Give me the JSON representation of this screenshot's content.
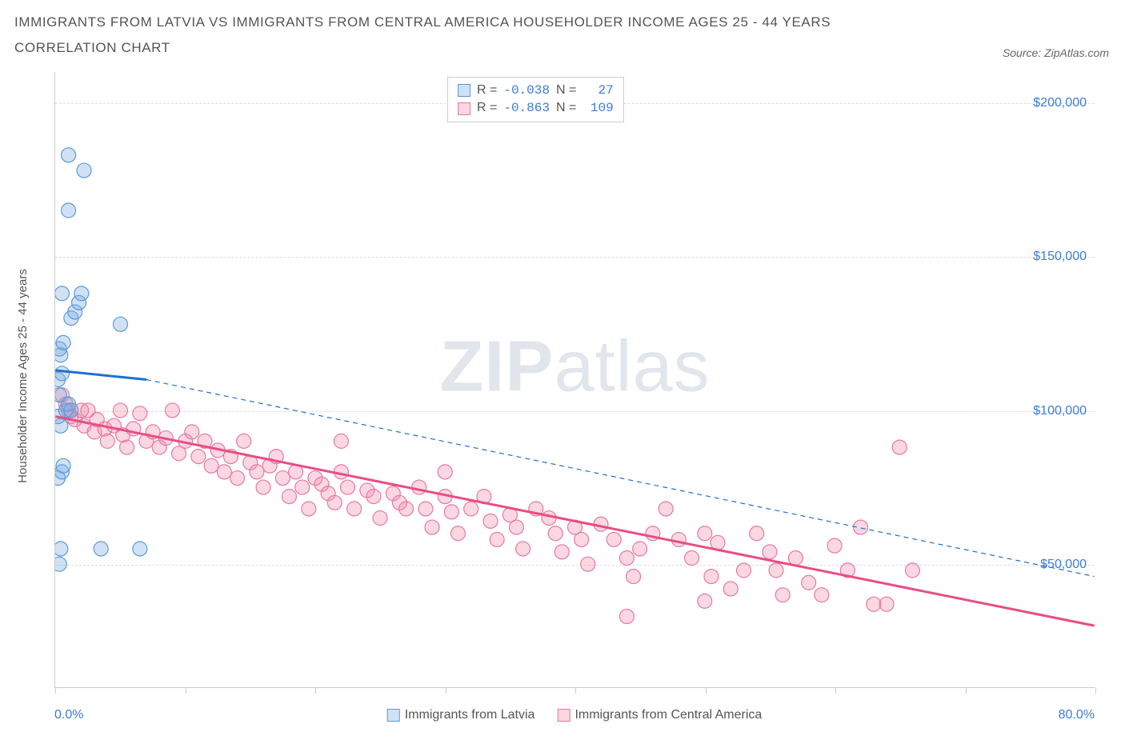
{
  "title_line1": "IMMIGRANTS FROM LATVIA VS IMMIGRANTS FROM CENTRAL AMERICA HOUSEHOLDER INCOME AGES 25 - 44 YEARS",
  "title_line2": "CORRELATION CHART",
  "source_label": "Source: ZipAtlas.com",
  "watermark_bold": "ZIP",
  "watermark_light": "atlas",
  "y_axis_label": "Householder Income Ages 25 - 44 years",
  "x_axis": {
    "min": 0,
    "max": 80,
    "left_label": "0.0%",
    "right_label": "80.0%",
    "tick_positions": [
      0,
      10,
      20,
      30,
      40,
      50,
      60,
      70,
      80
    ]
  },
  "y_axis": {
    "min": 10000,
    "max": 210000,
    "gridlines": [
      {
        "value": 50000,
        "label": "$50,000"
      },
      {
        "value": 100000,
        "label": "$100,000"
      },
      {
        "value": 150000,
        "label": "$150,000"
      },
      {
        "value": 200000,
        "label": "$200,000"
      }
    ]
  },
  "series": {
    "latvia": {
      "name": "Immigrants from Latvia",
      "marker_fill": "rgba(120,170,225,0.35)",
      "marker_stroke": "#5a9bd8",
      "marker_radius": 9,
      "line_color": "#1f6fd0",
      "line_solid_width": 3,
      "line_dash_width": 1.2,
      "trend_start": {
        "x": 0,
        "y": 113000
      },
      "trend_solid_end": {
        "x": 7,
        "y": 110000
      },
      "trend_end": {
        "x": 80,
        "y": 46000
      },
      "legend_R": "-0.038",
      "legend_N": "  27",
      "points": [
        {
          "x": 0.3,
          "y": 50000
        },
        {
          "x": 0.4,
          "y": 55000
        },
        {
          "x": 6.5,
          "y": 55000
        },
        {
          "x": 0.2,
          "y": 78000
        },
        {
          "x": 0.5,
          "y": 80000
        },
        {
          "x": 0.6,
          "y": 82000
        },
        {
          "x": 0.4,
          "y": 95000
        },
        {
          "x": 0.2,
          "y": 98000
        },
        {
          "x": 0.8,
          "y": 100000
        },
        {
          "x": 1.0,
          "y": 102000
        },
        {
          "x": 0.3,
          "y": 105000
        },
        {
          "x": 0.2,
          "y": 110000
        },
        {
          "x": 0.5,
          "y": 112000
        },
        {
          "x": 0.4,
          "y": 118000
        },
        {
          "x": 0.3,
          "y": 120000
        },
        {
          "x": 0.6,
          "y": 122000
        },
        {
          "x": 5.0,
          "y": 128000
        },
        {
          "x": 1.2,
          "y": 130000
        },
        {
          "x": 1.5,
          "y": 132000
        },
        {
          "x": 1.8,
          "y": 135000
        },
        {
          "x": 2.0,
          "y": 138000
        },
        {
          "x": 0.5,
          "y": 138000
        },
        {
          "x": 1.0,
          "y": 165000
        },
        {
          "x": 2.2,
          "y": 178000
        },
        {
          "x": 1.0,
          "y": 183000
        },
        {
          "x": 3.5,
          "y": 55000
        },
        {
          "x": 1.2,
          "y": 100000
        }
      ]
    },
    "central_america": {
      "name": "Immigrants from Central America",
      "marker_fill": "rgba(240,140,170,0.35)",
      "marker_stroke": "#e67aa0",
      "marker_radius": 9,
      "line_color": "#e94d82",
      "line_width": 3,
      "trend_start": {
        "x": 0,
        "y": 98000
      },
      "trend_end": {
        "x": 80,
        "y": 30000
      },
      "legend_R": "-0.863",
      "legend_N": " 109",
      "points": [
        {
          "x": 0.5,
          "y": 105000
        },
        {
          "x": 0.8,
          "y": 102000
        },
        {
          "x": 1.0,
          "y": 100000
        },
        {
          "x": 1.2,
          "y": 98000
        },
        {
          "x": 1.5,
          "y": 97000
        },
        {
          "x": 2.0,
          "y": 100000
        },
        {
          "x": 2.2,
          "y": 95000
        },
        {
          "x": 2.5,
          "y": 100000
        },
        {
          "x": 3.0,
          "y": 93000
        },
        {
          "x": 3.2,
          "y": 97000
        },
        {
          "x": 3.8,
          "y": 94000
        },
        {
          "x": 4.0,
          "y": 90000
        },
        {
          "x": 4.5,
          "y": 95000
        },
        {
          "x": 5.0,
          "y": 100000
        },
        {
          "x": 5.2,
          "y": 92000
        },
        {
          "x": 5.5,
          "y": 88000
        },
        {
          "x": 6.0,
          "y": 94000
        },
        {
          "x": 6.5,
          "y": 99000
        },
        {
          "x": 7.0,
          "y": 90000
        },
        {
          "x": 7.5,
          "y": 93000
        },
        {
          "x": 8.0,
          "y": 88000
        },
        {
          "x": 8.5,
          "y": 91000
        },
        {
          "x": 9.0,
          "y": 100000
        },
        {
          "x": 9.5,
          "y": 86000
        },
        {
          "x": 10,
          "y": 90000
        },
        {
          "x": 10.5,
          "y": 93000
        },
        {
          "x": 11,
          "y": 85000
        },
        {
          "x": 11.5,
          "y": 90000
        },
        {
          "x": 12,
          "y": 82000
        },
        {
          "x": 12.5,
          "y": 87000
        },
        {
          "x": 13,
          "y": 80000
        },
        {
          "x": 13.5,
          "y": 85000
        },
        {
          "x": 14,
          "y": 78000
        },
        {
          "x": 14.5,
          "y": 90000
        },
        {
          "x": 15,
          "y": 83000
        },
        {
          "x": 15.5,
          "y": 80000
        },
        {
          "x": 16,
          "y": 75000
        },
        {
          "x": 16.5,
          "y": 82000
        },
        {
          "x": 17,
          "y": 85000
        },
        {
          "x": 17.5,
          "y": 78000
        },
        {
          "x": 18,
          "y": 72000
        },
        {
          "x": 18.5,
          "y": 80000
        },
        {
          "x": 19,
          "y": 75000
        },
        {
          "x": 19.5,
          "y": 68000
        },
        {
          "x": 20,
          "y": 78000
        },
        {
          "x": 20.5,
          "y": 76000
        },
        {
          "x": 21,
          "y": 73000
        },
        {
          "x": 21.5,
          "y": 70000
        },
        {
          "x": 22,
          "y": 80000
        },
        {
          "x": 22.5,
          "y": 75000
        },
        {
          "x": 23,
          "y": 68000
        },
        {
          "x": 24,
          "y": 74000
        },
        {
          "x": 24.5,
          "y": 72000
        },
        {
          "x": 25,
          "y": 65000
        },
        {
          "x": 26,
          "y": 73000
        },
        {
          "x": 26.5,
          "y": 70000
        },
        {
          "x": 27,
          "y": 68000
        },
        {
          "x": 28,
          "y": 75000
        },
        {
          "x": 28.5,
          "y": 68000
        },
        {
          "x": 29,
          "y": 62000
        },
        {
          "x": 30,
          "y": 72000
        },
        {
          "x": 30.5,
          "y": 67000
        },
        {
          "x": 31,
          "y": 60000
        },
        {
          "x": 32,
          "y": 68000
        },
        {
          "x": 33,
          "y": 72000
        },
        {
          "x": 33.5,
          "y": 64000
        },
        {
          "x": 34,
          "y": 58000
        },
        {
          "x": 35,
          "y": 66000
        },
        {
          "x": 35.5,
          "y": 62000
        },
        {
          "x": 36,
          "y": 55000
        },
        {
          "x": 37,
          "y": 68000
        },
        {
          "x": 38,
          "y": 65000
        },
        {
          "x": 38.5,
          "y": 60000
        },
        {
          "x": 39,
          "y": 54000
        },
        {
          "x": 40,
          "y": 62000
        },
        {
          "x": 40.5,
          "y": 58000
        },
        {
          "x": 41,
          "y": 50000
        },
        {
          "x": 42,
          "y": 63000
        },
        {
          "x": 43,
          "y": 58000
        },
        {
          "x": 44,
          "y": 52000
        },
        {
          "x": 44.5,
          "y": 46000
        },
        {
          "x": 45,
          "y": 55000
        },
        {
          "x": 46,
          "y": 60000
        },
        {
          "x": 47,
          "y": 68000
        },
        {
          "x": 48,
          "y": 58000
        },
        {
          "x": 49,
          "y": 52000
        },
        {
          "x": 50,
          "y": 60000
        },
        {
          "x": 50.5,
          "y": 46000
        },
        {
          "x": 51,
          "y": 57000
        },
        {
          "x": 52,
          "y": 42000
        },
        {
          "x": 53,
          "y": 48000
        },
        {
          "x": 54,
          "y": 60000
        },
        {
          "x": 55,
          "y": 54000
        },
        {
          "x": 55.5,
          "y": 48000
        },
        {
          "x": 56,
          "y": 40000
        },
        {
          "x": 57,
          "y": 52000
        },
        {
          "x": 58,
          "y": 44000
        },
        {
          "x": 59,
          "y": 40000
        },
        {
          "x": 60,
          "y": 56000
        },
        {
          "x": 61,
          "y": 48000
        },
        {
          "x": 62,
          "y": 62000
        },
        {
          "x": 63,
          "y": 37000
        },
        {
          "x": 64,
          "y": 37000
        },
        {
          "x": 65,
          "y": 88000
        },
        {
          "x": 66,
          "y": 48000
        },
        {
          "x": 44,
          "y": 33000
        },
        {
          "x": 50,
          "y": 38000
        },
        {
          "x": 22,
          "y": 90000
        },
        {
          "x": 30,
          "y": 80000
        }
      ]
    }
  },
  "legend_box": {
    "r_label": "R =",
    "n_label": "N ="
  },
  "colors": {
    "title_text": "#555555",
    "axis_value": "#3b7dd8",
    "grid": "#dddddd"
  }
}
